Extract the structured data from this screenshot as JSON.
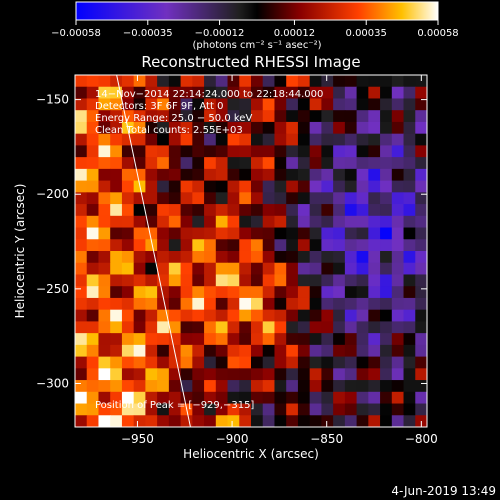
{
  "chart_data": {
    "type": "heatmap",
    "title": "Reconstructed RHESSI Image",
    "xlabel": "Heliocentric X (arcsec)",
    "ylabel": "Heliocentric Y (arcsec)",
    "xlim": [
      -983,
      -797
    ],
    "ylim": [
      -323,
      -137
    ],
    "x_ticks": [
      -950,
      -900,
      -850,
      -800
    ],
    "x_tick_labels": [
      "−950",
      "−900",
      "−850",
      "−800"
    ],
    "y_ticks": [
      -150,
      -200,
      -250,
      -300
    ],
    "y_tick_labels": [
      "−150",
      "−200",
      "−250",
      "−300"
    ],
    "colorbar": {
      "range": [
        -0.00058,
        0.00058
      ],
      "tick_values": [
        -0.00058,
        -0.00035,
        -0.00012,
        0.00012,
        0.00035,
        0.00058
      ],
      "tick_labels": [
        "−0.00058",
        "−0.00035",
        "−0.00012",
        "0.00012",
        "0.00035",
        "0.00058"
      ],
      "units_label": "(photons cm⁻² s⁻¹ asec⁻²)"
    },
    "annotations": [
      "14−Nov−2014 22:14:24.000 to 22:18:44.000",
      "Detectors: 3F 6F 9F, Att 0",
      "Energy Range: 25.0 − 50.0 keV",
      "Clean    Total counts: 2.55E+03"
    ],
    "peak_label": "Position of Peak = [−929,−315]",
    "peak": [
      -929,
      -315
    ],
    "limb_line": [
      [
        -961,
        -137
      ],
      [
        -922,
        -323
      ]
    ],
    "grid_resolution": [
      30,
      30
    ],
    "grid": []
  },
  "footer": {
    "date": "4-Jun-2019 13:49"
  }
}
